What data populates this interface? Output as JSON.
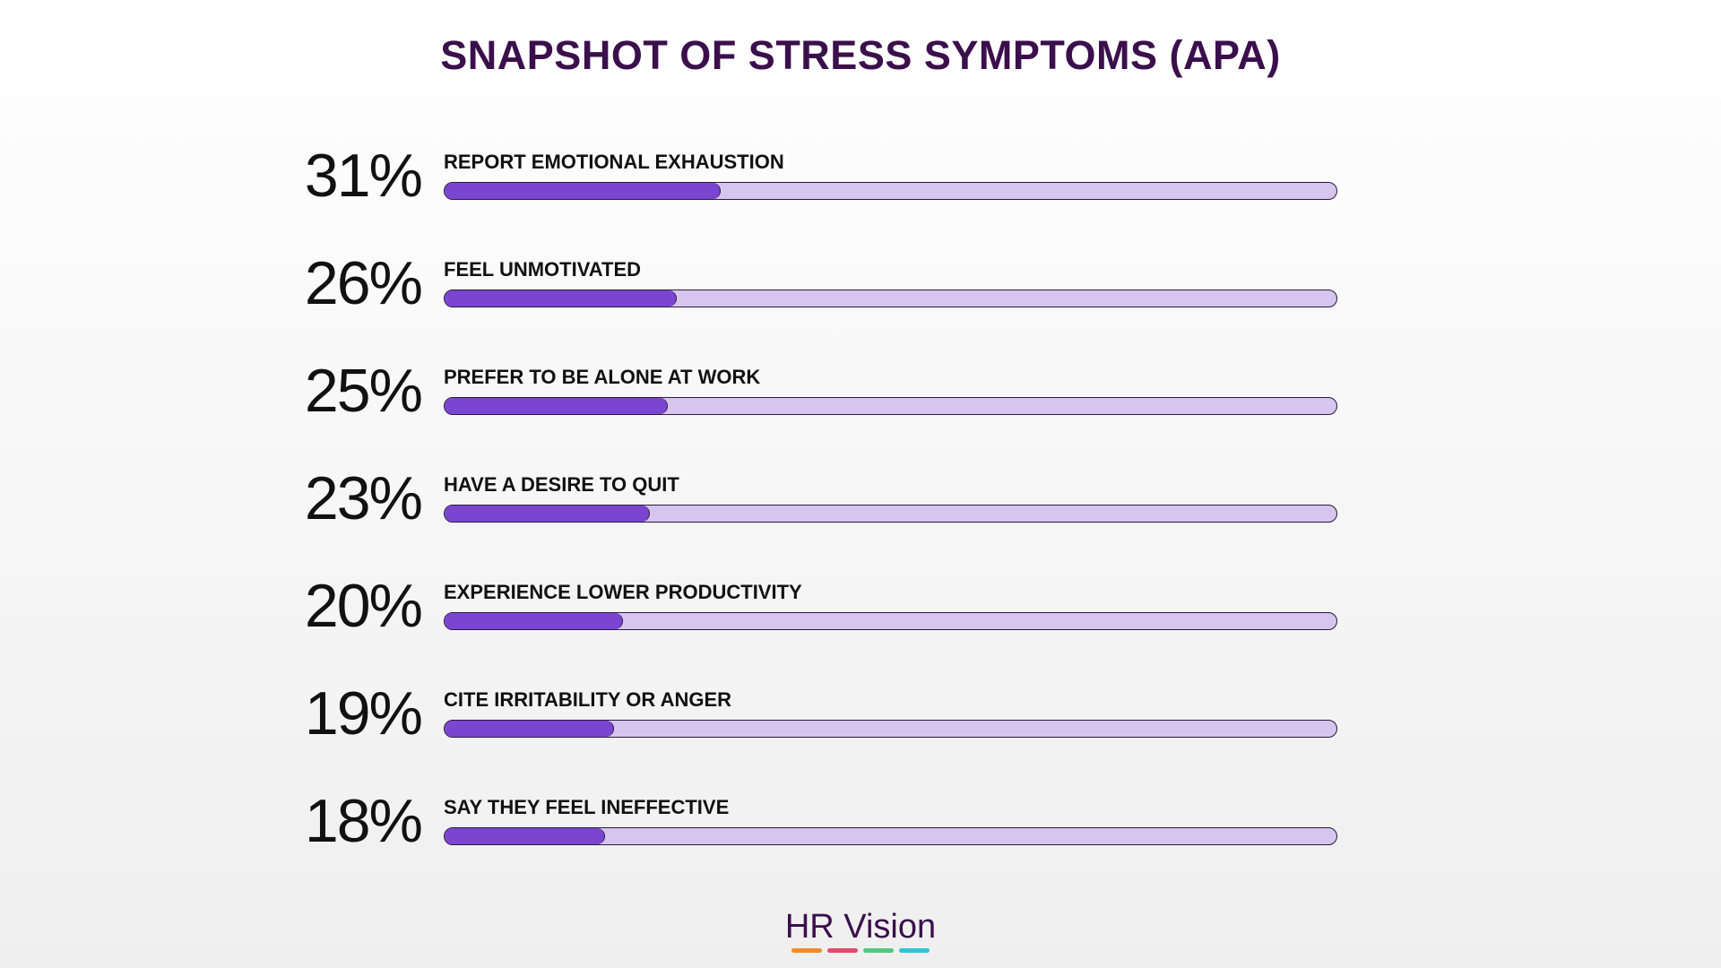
{
  "chart_data": {
    "type": "bar",
    "orientation": "horizontal",
    "title": "SNAPSHOT OF STRESS SYMPTOMS (APA)",
    "categories": [
      "REPORT EMOTIONAL EXHAUSTION",
      "FEEL UNMOTIVATED",
      "PREFER TO BE ALONE AT WORK",
      "HAVE A DESIRE TO QUIT",
      "EXPERIENCE LOWER PRODUCTIVITY",
      "CITE IRRITABILITY OR ANGER",
      "SAY THEY FEEL INEFFECTIVE"
    ],
    "values": [
      31,
      26,
      25,
      23,
      20,
      19,
      18
    ],
    "value_labels": [
      "31%",
      "26%",
      "25%",
      "23%",
      "20%",
      "19%",
      "18%"
    ],
    "xlim": [
      0,
      100
    ],
    "grid": false,
    "colors": {
      "fill": "#7a45d1",
      "track": "#d7c4ef",
      "title": "#3b0f4c"
    }
  },
  "brand": {
    "name": "HR Vision",
    "stripe_colors": [
      "#f28c28",
      "#e04b6a",
      "#4fc97a",
      "#2ec4d6"
    ]
  }
}
